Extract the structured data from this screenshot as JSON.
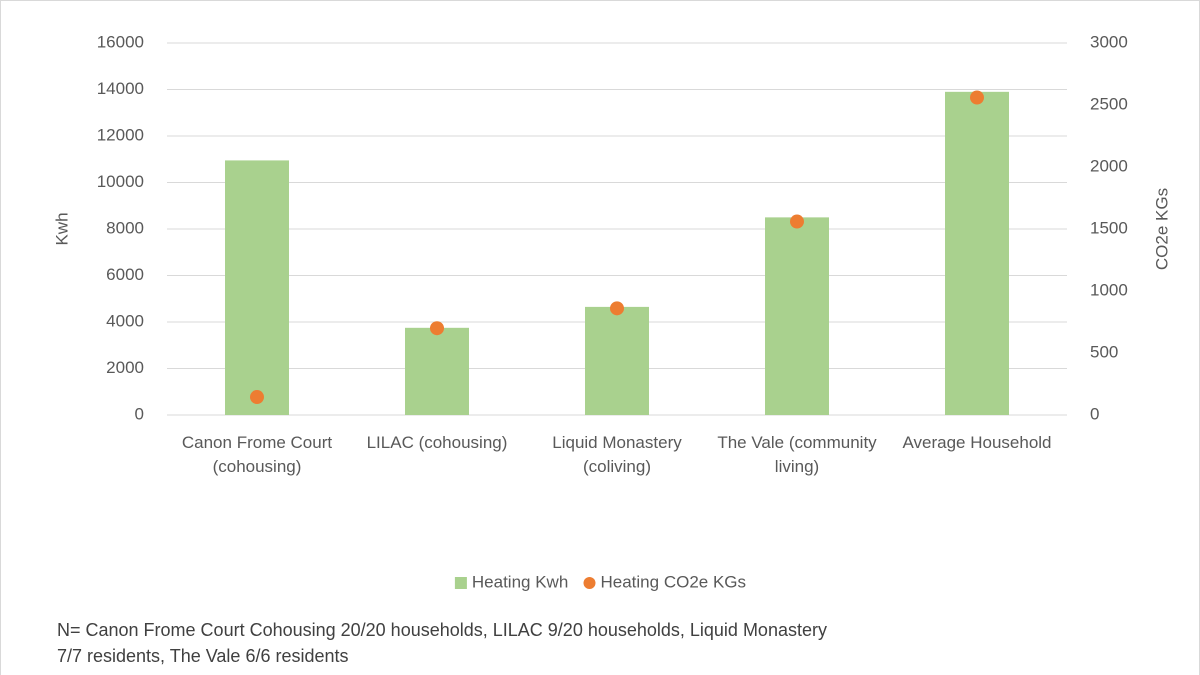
{
  "chart_data": {
    "type": "bar",
    "categories": [
      "Canon Frome Court (cohousing)",
      "LILAC (cohousing)",
      "Liquid Monastery (coliving)",
      "The Vale (community living)",
      "Average Household"
    ],
    "series": [
      {
        "name": "Heating Kwh",
        "type": "bar",
        "color": "#a9d18e",
        "values": [
          10950,
          3750,
          4650,
          8500,
          13900
        ]
      },
      {
        "name": "Heating CO2e KGs",
        "type": "scatter",
        "axis": "y2",
        "color": "#ed7d31",
        "values": [
          145,
          700,
          860,
          1560,
          2560
        ]
      }
    ],
    "y_label": "Kwh",
    "y2_label": "CO2e KGs",
    "ylim": [
      0,
      16000
    ],
    "yticks": [
      0,
      2000,
      4000,
      6000,
      8000,
      10000,
      12000,
      14000,
      16000
    ],
    "y2lim": [
      0,
      3000
    ],
    "y2ticks": [
      0,
      500,
      1000,
      1500,
      2000,
      2500,
      3000
    ],
    "grid": true,
    "legend": "bottom",
    "footnote": "N= Canon Frome Court Cohousing 20/20 households, LILAC 9/20 households, Liquid Monastery 7/7 residents, The Vale 6/6 residents"
  }
}
